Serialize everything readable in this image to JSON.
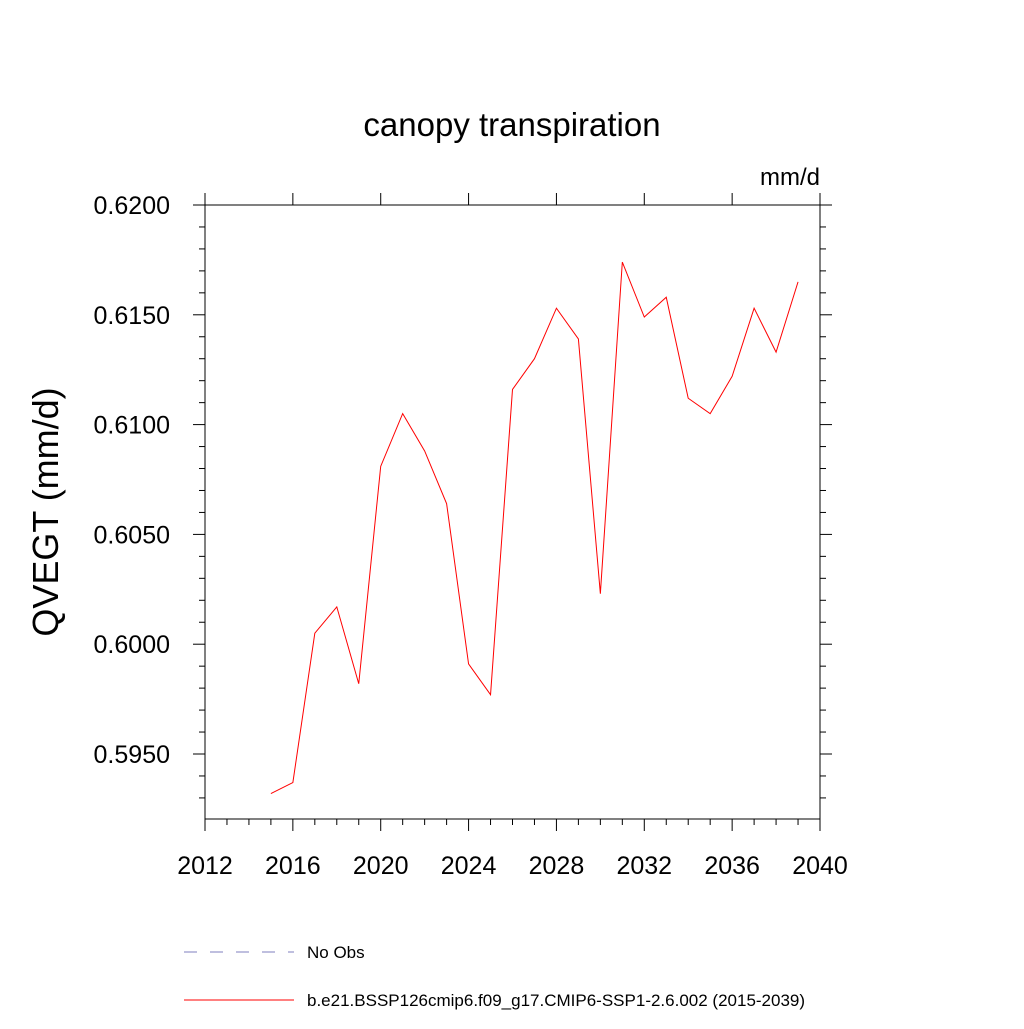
{
  "chart_data": {
    "type": "line",
    "title": "canopy transpiration",
    "units_label": "mm/d",
    "ylabel": "QVEGT  (mm/d)",
    "xlabel": "",
    "xlim": [
      2012,
      2040
    ],
    "ylim": [
      0.592,
      0.6208
    ],
    "x_ticks": [
      2012,
      2016,
      2020,
      2024,
      2028,
      2032,
      2036,
      2040
    ],
    "x_tick_labels": [
      "2012",
      "2016",
      "2020",
      "2024",
      "2028",
      "2032",
      "2036",
      "2040"
    ],
    "y_ticks": [
      0.595,
      0.6,
      0.605,
      0.61,
      0.615,
      0.62
    ],
    "y_tick_labels": [
      "0.5950",
      "0.6000",
      "0.6050",
      "0.6100",
      "0.6150",
      "0.6200"
    ],
    "grid": false,
    "legend_position": "bottom",
    "series": [
      {
        "name": "b.e21.BSSP126cmip6.f09_g17.CMIP6-SSP1-2.6.002 (2015-2039)",
        "color": "#ff0000",
        "style": "solid",
        "x": [
          2015,
          2016,
          2017,
          2018,
          2019,
          2020,
          2021,
          2022,
          2023,
          2024,
          2025,
          2026,
          2027,
          2028,
          2029,
          2030,
          2031,
          2032,
          2033,
          2034,
          2035,
          2036,
          2037,
          2038,
          2039
        ],
        "values": [
          0.5932,
          0.5937,
          0.6005,
          0.6017,
          0.5982,
          0.6081,
          0.6105,
          0.6088,
          0.6064,
          0.5991,
          0.5977,
          0.6116,
          0.613,
          0.6153,
          0.6139,
          0.6023,
          0.6174,
          0.6149,
          0.6158,
          0.6112,
          0.6105,
          0.6122,
          0.6153,
          0.6133,
          0.6165
        ]
      }
    ],
    "legend": [
      {
        "label": "No Obs",
        "color": "#7f7fbf",
        "style": "dashed"
      },
      {
        "label": "b.e21.BSSP126cmip6.f09_g17.CMIP6-SSP1-2.6.002 (2015-2039)",
        "color": "#ff0000",
        "style": "solid"
      }
    ]
  }
}
